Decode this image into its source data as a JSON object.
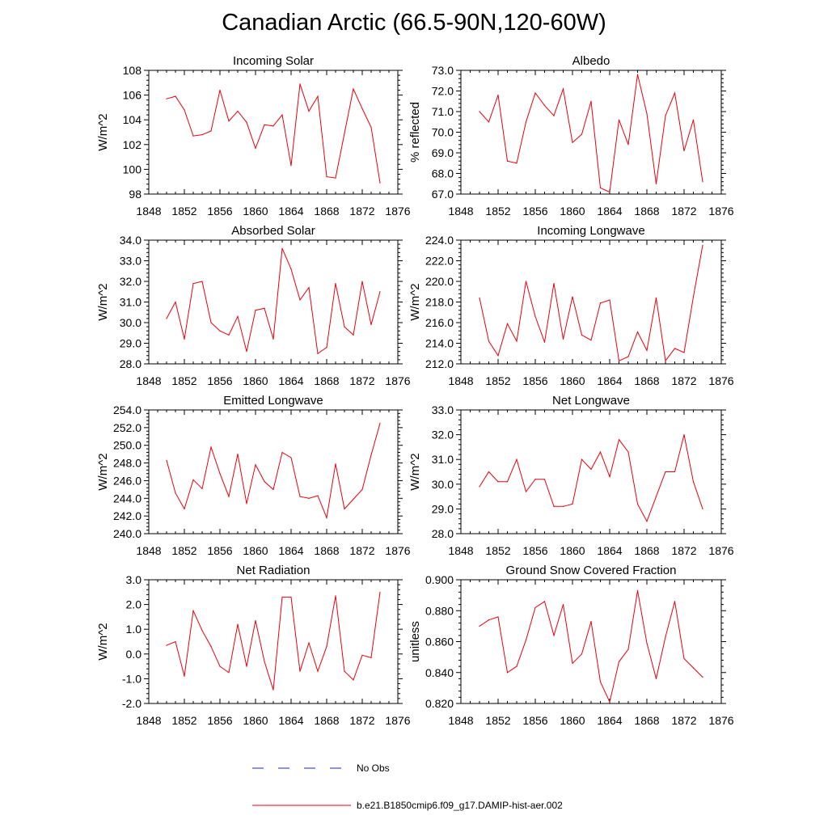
{
  "title": "Canadian Arctic (66.5-90N,120-60W)",
  "colors": {
    "model": "#e8000b",
    "obs": "#2222cc",
    "axis": "#000000"
  },
  "legend": {
    "obs_label": "No Obs",
    "model_label": "b.e21.B1850cmip6.f09_g17.DAMIP-hist-aer.002"
  },
  "chart_data": [
    {
      "type": "line",
      "title": "Incoming Solar",
      "ylabel": "W/m^2",
      "xlabel": "",
      "xlim": [
        1848,
        1876
      ],
      "ylim": [
        98,
        108
      ],
      "xticks": [
        1848,
        1852,
        1856,
        1860,
        1864,
        1868,
        1872,
        1876
      ],
      "xtick_labels": [
        "1848",
        "1852",
        "1856",
        "1860",
        "1864",
        "1868",
        "1872",
        "1876"
      ],
      "yticks": [
        98,
        100,
        102,
        104,
        106,
        108
      ],
      "ytick_labels": [
        "98",
        "100",
        "102",
        "104",
        "106",
        "108"
      ],
      "x": [
        1850,
        1851,
        1852,
        1853,
        1854,
        1855,
        1856,
        1857,
        1858,
        1859,
        1860,
        1861,
        1862,
        1863,
        1864,
        1865,
        1866,
        1867,
        1868,
        1869,
        1870,
        1871,
        1872,
        1873,
        1874
      ],
      "series": [
        {
          "name": "b.e21.B1850cmip6.f09_g17.DAMIP-hist-aer.002",
          "values": [
            105.7,
            105.9,
            104.8,
            102.7,
            102.8,
            103.1,
            106.4,
            103.9,
            104.7,
            103.8,
            101.7,
            103.6,
            103.5,
            104.4,
            100.3,
            106.9,
            104.7,
            105.9,
            99.4,
            99.3,
            102.9,
            106.5,
            104.9,
            103.4,
            98.9
          ]
        }
      ]
    },
    {
      "type": "line",
      "title": "Albedo",
      "ylabel": "% reflected",
      "xlabel": "",
      "xlim": [
        1848,
        1876
      ],
      "ylim": [
        67.0,
        73.0
      ],
      "xticks": [
        1848,
        1852,
        1856,
        1860,
        1864,
        1868,
        1872,
        1876
      ],
      "xtick_labels": [
        "1848",
        "1852",
        "1856",
        "1860",
        "1864",
        "1868",
        "1872",
        "1876"
      ],
      "yticks": [
        67,
        68,
        69,
        70,
        71,
        72,
        73
      ],
      "ytick_labels": [
        "67.0",
        "68.0",
        "69.0",
        "70.0",
        "71.0",
        "72.0",
        "73.0"
      ],
      "x": [
        1850,
        1851,
        1852,
        1853,
        1854,
        1855,
        1856,
        1857,
        1858,
        1859,
        1860,
        1861,
        1862,
        1863,
        1864,
        1865,
        1866,
        1867,
        1868,
        1869,
        1870,
        1871,
        1872,
        1873,
        1874
      ],
      "series": [
        {
          "name": "b.e21.B1850cmip6.f09_g17.DAMIP-hist-aer.002",
          "values": [
            71.0,
            70.5,
            71.8,
            68.6,
            68.5,
            70.5,
            71.9,
            71.3,
            70.8,
            72.1,
            69.5,
            69.9,
            71.5,
            67.3,
            67.1,
            70.6,
            69.4,
            72.8,
            70.9,
            67.5,
            70.8,
            71.9,
            69.1,
            70.6,
            67.6
          ]
        }
      ]
    },
    {
      "type": "line",
      "title": "Absorbed Solar",
      "ylabel": "W/m^2",
      "xlabel": "",
      "xlim": [
        1848,
        1876
      ],
      "ylim": [
        28.0,
        34.0
      ],
      "xticks": [
        1848,
        1852,
        1856,
        1860,
        1864,
        1868,
        1872,
        1876
      ],
      "xtick_labels": [
        "1848",
        "1852",
        "1856",
        "1860",
        "1864",
        "1868",
        "1872",
        "1876"
      ],
      "yticks": [
        28,
        29,
        30,
        31,
        32,
        33,
        34
      ],
      "ytick_labels": [
        "28.0",
        "29.0",
        "30.0",
        "31.0",
        "32.0",
        "33.0",
        "34.0"
      ],
      "x": [
        1850,
        1851,
        1852,
        1853,
        1854,
        1855,
        1856,
        1857,
        1858,
        1859,
        1860,
        1861,
        1862,
        1863,
        1864,
        1865,
        1866,
        1867,
        1868,
        1869,
        1870,
        1871,
        1872,
        1873,
        1874
      ],
      "series": [
        {
          "name": "b.e21.B1850cmip6.f09_g17.DAMIP-hist-aer.002",
          "values": [
            30.2,
            31.0,
            29.2,
            31.9,
            32.0,
            30.0,
            29.6,
            29.4,
            30.3,
            28.6,
            30.6,
            30.7,
            29.2,
            33.6,
            32.6,
            31.1,
            31.7,
            28.5,
            28.8,
            31.9,
            29.8,
            29.4,
            32.0,
            29.9,
            31.5
          ]
        }
      ]
    },
    {
      "type": "line",
      "title": "Incoming Longwave",
      "ylabel": "W/m^2",
      "xlabel": "",
      "xlim": [
        1848,
        1876
      ],
      "ylim": [
        212.0,
        224.0
      ],
      "xticks": [
        1848,
        1852,
        1856,
        1860,
        1864,
        1868,
        1872,
        1876
      ],
      "xtick_labels": [
        "1848",
        "1852",
        "1856",
        "1860",
        "1864",
        "1868",
        "1872",
        "1876"
      ],
      "yticks": [
        212,
        214,
        216,
        218,
        220,
        222,
        224
      ],
      "ytick_labels": [
        "212.0",
        "214.0",
        "216.0",
        "218.0",
        "220.0",
        "222.0",
        "224.0"
      ],
      "x": [
        1850,
        1851,
        1852,
        1853,
        1854,
        1855,
        1856,
        1857,
        1858,
        1859,
        1860,
        1861,
        1862,
        1863,
        1864,
        1865,
        1866,
        1867,
        1868,
        1869,
        1870,
        1871,
        1872,
        1873,
        1874
      ],
      "series": [
        {
          "name": "b.e21.B1850cmip6.f09_g17.DAMIP-hist-aer.002",
          "values": [
            218.4,
            214.2,
            212.8,
            215.9,
            214.2,
            220.0,
            216.6,
            214.1,
            219.8,
            214.4,
            218.5,
            214.8,
            214.3,
            217.9,
            218.2,
            212.3,
            212.7,
            215.1,
            213.3,
            218.4,
            212.3,
            213.5,
            213.1,
            218.5,
            223.5
          ]
        }
      ]
    },
    {
      "type": "line",
      "title": "Emitted Longwave",
      "ylabel": "W/m^2",
      "xlabel": "",
      "xlim": [
        1848,
        1876
      ],
      "ylim": [
        240.0,
        254.0
      ],
      "xticks": [
        1848,
        1852,
        1856,
        1860,
        1864,
        1868,
        1872,
        1876
      ],
      "xtick_labels": [
        "1848",
        "1852",
        "1856",
        "1860",
        "1864",
        "1868",
        "1872",
        "1876"
      ],
      "yticks": [
        240,
        242,
        244,
        246,
        248,
        250,
        252,
        254
      ],
      "ytick_labels": [
        "240.0",
        "242.0",
        "244.0",
        "246.0",
        "248.0",
        "250.0",
        "252.0",
        "254.0"
      ],
      "x": [
        1850,
        1851,
        1852,
        1853,
        1854,
        1855,
        1856,
        1857,
        1858,
        1859,
        1860,
        1861,
        1862,
        1863,
        1864,
        1865,
        1866,
        1867,
        1868,
        1869,
        1870,
        1871,
        1872,
        1873,
        1874
      ],
      "series": [
        {
          "name": "b.e21.B1850cmip6.f09_g17.DAMIP-hist-aer.002",
          "values": [
            248.3,
            244.6,
            242.8,
            246.1,
            245.1,
            249.8,
            246.8,
            244.2,
            249.0,
            243.4,
            247.8,
            245.9,
            245.0,
            249.2,
            248.6,
            244.2,
            244.0,
            244.3,
            241.8,
            247.9,
            242.8,
            243.9,
            245.0,
            248.9,
            252.5
          ]
        }
      ]
    },
    {
      "type": "line",
      "title": "Net Longwave",
      "ylabel": "W/m^2",
      "xlabel": "",
      "xlim": [
        1848,
        1876
      ],
      "ylim": [
        28.0,
        33.0
      ],
      "xticks": [
        1848,
        1852,
        1856,
        1860,
        1864,
        1868,
        1872,
        1876
      ],
      "xtick_labels": [
        "1848",
        "1852",
        "1856",
        "1860",
        "1864",
        "1868",
        "1872",
        "1876"
      ],
      "yticks": [
        28,
        29,
        30,
        31,
        32,
        33
      ],
      "ytick_labels": [
        "28.0",
        "29.0",
        "30.0",
        "31.0",
        "32.0",
        "33.0"
      ],
      "x": [
        1850,
        1851,
        1852,
        1853,
        1854,
        1855,
        1856,
        1857,
        1858,
        1859,
        1860,
        1861,
        1862,
        1863,
        1864,
        1865,
        1866,
        1867,
        1868,
        1869,
        1870,
        1871,
        1872,
        1873,
        1874
      ],
      "series": [
        {
          "name": "b.e21.B1850cmip6.f09_g17.DAMIP-hist-aer.002",
          "values": [
            29.9,
            30.5,
            30.1,
            30.1,
            31.0,
            29.7,
            30.2,
            30.2,
            29.1,
            29.1,
            29.2,
            31.0,
            30.6,
            31.3,
            30.3,
            31.8,
            31.3,
            29.2,
            28.5,
            29.5,
            30.5,
            30.5,
            32.0,
            30.1,
            29.0
          ]
        }
      ]
    },
    {
      "type": "line",
      "title": "Net Radiation",
      "ylabel": "W/m^2",
      "xlabel": "",
      "xlim": [
        1848,
        1876
      ],
      "ylim": [
        -2.0,
        3.0
      ],
      "xticks": [
        1848,
        1852,
        1856,
        1860,
        1864,
        1868,
        1872,
        1876
      ],
      "xtick_labels": [
        "1848",
        "1852",
        "1856",
        "1860",
        "1864",
        "1868",
        "1872",
        "1876"
      ],
      "yticks": [
        -2,
        -1,
        0,
        1,
        2,
        3
      ],
      "ytick_labels": [
        "-2.0",
        "-1.0",
        "0.0",
        "1.0",
        "2.0",
        "3.0"
      ],
      "x": [
        1850,
        1851,
        1852,
        1853,
        1854,
        1855,
        1856,
        1857,
        1858,
        1859,
        1860,
        1861,
        1862,
        1863,
        1864,
        1865,
        1866,
        1867,
        1868,
        1869,
        1870,
        1871,
        1872,
        1873,
        1874
      ],
      "series": [
        {
          "name": "b.e21.B1850cmip6.f09_g17.DAMIP-hist-aer.002",
          "values": [
            0.35,
            0.5,
            -0.9,
            1.75,
            0.95,
            0.3,
            -0.5,
            -0.75,
            1.2,
            -0.5,
            1.35,
            -0.3,
            -1.45,
            2.3,
            2.3,
            -0.7,
            0.45,
            -0.7,
            0.3,
            2.35,
            -0.7,
            -1.05,
            -0.05,
            -0.15,
            2.5
          ]
        }
      ]
    },
    {
      "type": "line",
      "title": "Ground Snow Covered Fraction",
      "ylabel": "unitless",
      "xlabel": "",
      "xlim": [
        1848,
        1876
      ],
      "ylim": [
        0.82,
        0.9
      ],
      "xticks": [
        1848,
        1852,
        1856,
        1860,
        1864,
        1868,
        1872,
        1876
      ],
      "xtick_labels": [
        "1848",
        "1852",
        "1856",
        "1860",
        "1864",
        "1868",
        "1872",
        "1876"
      ],
      "yticks": [
        0.82,
        0.84,
        0.86,
        0.88,
        0.9
      ],
      "ytick_labels": [
        "0.820",
        "0.840",
        "0.860",
        "0.880",
        "0.900"
      ],
      "x": [
        1850,
        1851,
        1852,
        1853,
        1854,
        1855,
        1856,
        1857,
        1858,
        1859,
        1860,
        1861,
        1862,
        1863,
        1864,
        1865,
        1866,
        1867,
        1868,
        1869,
        1870,
        1871,
        1872,
        1873,
        1874
      ],
      "series": [
        {
          "name": "b.e21.B1850cmip6.f09_g17.DAMIP-hist-aer.002",
          "values": [
            0.87,
            0.874,
            0.876,
            0.84,
            0.844,
            0.861,
            0.882,
            0.886,
            0.864,
            0.884,
            0.846,
            0.852,
            0.873,
            0.834,
            0.821,
            0.847,
            0.855,
            0.893,
            0.859,
            0.836,
            0.863,
            0.886,
            0.849,
            0.843,
            0.837
          ]
        }
      ]
    }
  ]
}
